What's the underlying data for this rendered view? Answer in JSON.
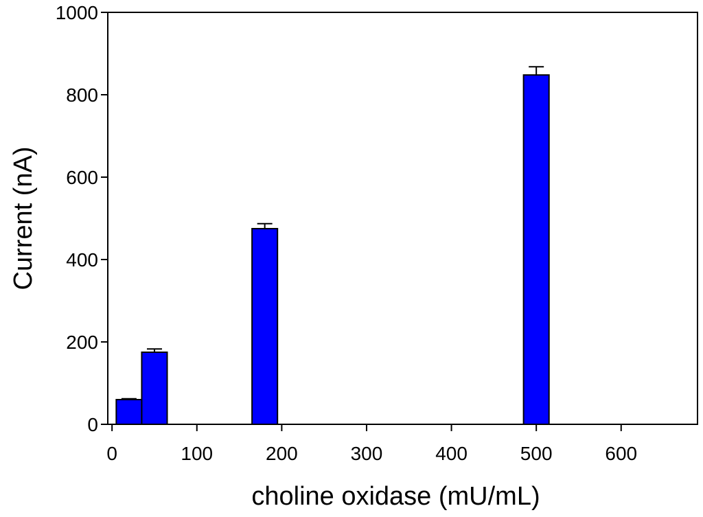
{
  "chart_data": {
    "type": "bar",
    "xlabel": "choline oxidase (mU/mL)",
    "ylabel": "Current (nA)",
    "xlim": [
      -5,
      690
    ],
    "ylim": [
      0,
      1000
    ],
    "x_ticks": [
      0,
      100,
      200,
      300,
      400,
      500,
      600
    ],
    "y_ticks": [
      0,
      200,
      400,
      600,
      800,
      1000
    ],
    "grid": false,
    "colors": {
      "bar_fill": "#0000ff",
      "bar_stroke": "#000000"
    },
    "bars": [
      {
        "x": 20,
        "value": 60,
        "error": 2,
        "x_from": 5,
        "x_to": 35
      },
      {
        "x": 50,
        "value": 175,
        "error": 8,
        "x_from": 35,
        "x_to": 65
      },
      {
        "x": 180,
        "value": 475,
        "error": 12,
        "x_from": 165,
        "x_to": 195
      },
      {
        "x": 500,
        "value": 848,
        "error": 20,
        "x_from": 485,
        "x_to": 515
      }
    ]
  }
}
